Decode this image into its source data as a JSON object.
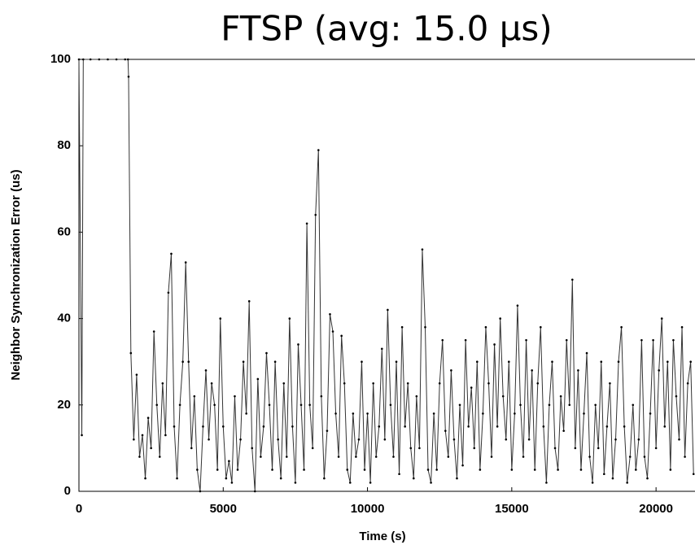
{
  "chart_data": {
    "type": "line",
    "title": "FTSP (avg: 15.0 µs)",
    "x_label": "Time (s)",
    "y_label": "Neighbor Synchronization Error (us)",
    "xlim": [
      0,
      21350
    ],
    "ylim": [
      0,
      100
    ],
    "xticks": [
      0,
      5000,
      10000,
      15000,
      20000
    ],
    "yticks": [
      0,
      20,
      40,
      60,
      80,
      100
    ],
    "x": [
      0,
      100,
      150,
      400,
      700,
      1000,
      1300,
      1600,
      1700,
      1720,
      1800,
      1900,
      2000,
      2100,
      2200,
      2300,
      2400,
      2500,
      2600,
      2700,
      2800,
      2900,
      3000,
      3100,
      3200,
      3300,
      3400,
      3500,
      3600,
      3700,
      3800,
      3900,
      4000,
      4100,
      4200,
      4300,
      4400,
      4500,
      4600,
      4700,
      4800,
      4900,
      5000,
      5100,
      5200,
      5300,
      5400,
      5500,
      5600,
      5700,
      5800,
      5900,
      6000,
      6100,
      6200,
      6300,
      6400,
      6500,
      6600,
      6700,
      6800,
      6900,
      7000,
      7100,
      7200,
      7300,
      7400,
      7500,
      7600,
      7700,
      7800,
      7900,
      8000,
      8100,
      8200,
      8300,
      8400,
      8500,
      8600,
      8700,
      8800,
      8900,
      9000,
      9100,
      9200,
      9300,
      9400,
      9500,
      9600,
      9700,
      9800,
      9900,
      10000,
      10100,
      10200,
      10300,
      10400,
      10500,
      10600,
      10700,
      10800,
      10900,
      11000,
      11100,
      11200,
      11300,
      11400,
      11500,
      11600,
      11700,
      11800,
      11900,
      12000,
      12100,
      12200,
      12300,
      12400,
      12500,
      12600,
      12700,
      12800,
      12900,
      13000,
      13100,
      13200,
      13300,
      13400,
      13500,
      13600,
      13700,
      13800,
      13900,
      14000,
      14100,
      14200,
      14300,
      14400,
      14500,
      14600,
      14700,
      14800,
      14900,
      15000,
      15100,
      15200,
      15300,
      15400,
      15500,
      15600,
      15700,
      15800,
      15900,
      16000,
      16100,
      16200,
      16300,
      16400,
      16500,
      16600,
      16700,
      16800,
      16900,
      17000,
      17100,
      17200,
      17300,
      17400,
      17500,
      17600,
      17700,
      17800,
      17900,
      18000,
      18100,
      18200,
      18300,
      18400,
      18500,
      18600,
      18700,
      18800,
      18900,
      19000,
      19100,
      19200,
      19300,
      19400,
      19500,
      19600,
      19700,
      19800,
      19900,
      20000,
      20100,
      20200,
      20300,
      20400,
      20500,
      20600,
      20700,
      20800,
      20900,
      21000,
      21100,
      21200,
      21300
    ],
    "values": [
      100,
      13,
      100,
      100,
      100,
      100,
      100,
      100,
      100,
      96,
      32,
      12,
      27,
      8,
      13,
      3,
      17,
      10,
      37,
      20,
      8,
      25,
      13,
      46,
      55,
      15,
      3,
      20,
      30,
      53,
      30,
      10,
      22,
      5,
      0,
      15,
      28,
      12,
      25,
      20,
      5,
      40,
      15,
      3,
      7,
      2,
      22,
      5,
      12,
      30,
      18,
      44,
      10,
      0,
      26,
      8,
      15,
      32,
      20,
      5,
      30,
      12,
      3,
      25,
      8,
      40,
      15,
      2,
      34,
      20,
      5,
      62,
      20,
      10,
      64,
      79,
      22,
      3,
      14,
      41,
      37,
      18,
      8,
      36,
      25,
      5,
      2,
      18,
      8,
      12,
      30,
      5,
      18,
      2,
      25,
      8,
      15,
      33,
      12,
      42,
      20,
      8,
      30,
      4,
      38,
      15,
      25,
      10,
      3,
      22,
      10,
      56,
      38,
      5,
      2,
      18,
      5,
      25,
      35,
      14,
      8,
      28,
      12,
      3,
      20,
      6,
      35,
      15,
      24,
      10,
      30,
      5,
      18,
      38,
      25,
      8,
      34,
      15,
      40,
      22,
      12,
      30,
      5,
      18,
      43,
      20,
      8,
      35,
      12,
      28,
      5,
      25,
      38,
      15,
      2,
      20,
      30,
      10,
      5,
      22,
      14,
      35,
      20,
      49,
      10,
      28,
      5,
      18,
      32,
      8,
      2,
      20,
      10,
      30,
      4,
      15,
      25,
      3,
      12,
      30,
      38,
      15,
      2,
      8,
      20,
      5,
      12,
      35,
      8,
      3,
      18,
      35,
      10,
      28,
      40,
      15,
      30,
      5,
      35,
      22,
      12,
      38,
      8,
      25,
      30,
      4
    ],
    "color": "#333333"
  }
}
